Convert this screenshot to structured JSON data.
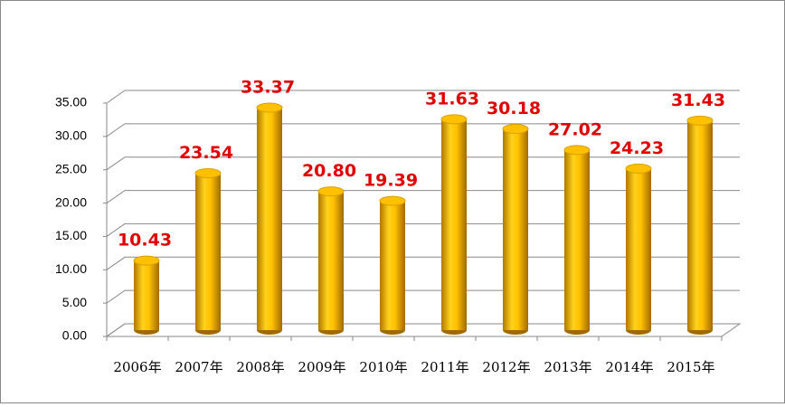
{
  "chart_data": {
    "type": "bar3d",
    "categories": [
      "2006年",
      "2007年",
      "2008年",
      "2009年",
      "2010年",
      "2011年",
      "2012年",
      "2013年",
      "2014年",
      "2015年"
    ],
    "values": [
      10.43,
      23.54,
      33.37,
      20.8,
      19.39,
      31.63,
      30.18,
      27.02,
      24.23,
      31.43
    ],
    "value_labels": [
      "10.43",
      "23.54",
      "33.37",
      "20.80",
      "19.39",
      "31.63",
      "30.18",
      "27.02",
      "24.23",
      "31.43"
    ],
    "color": "#ffc000",
    "ylim": [
      0,
      35
    ],
    "yticks": [
      {
        "value": 0,
        "label": "0.00"
      },
      {
        "value": 5,
        "label": "5.00"
      },
      {
        "value": 10,
        "label": "10.00"
      },
      {
        "value": 15,
        "label": "15.00"
      },
      {
        "value": 20,
        "label": "20.00"
      },
      {
        "value": 25,
        "label": "25.00"
      },
      {
        "value": 30,
        "label": "30.00"
      },
      {
        "value": 35,
        "label": "35.00"
      }
    ],
    "grid": true
  }
}
